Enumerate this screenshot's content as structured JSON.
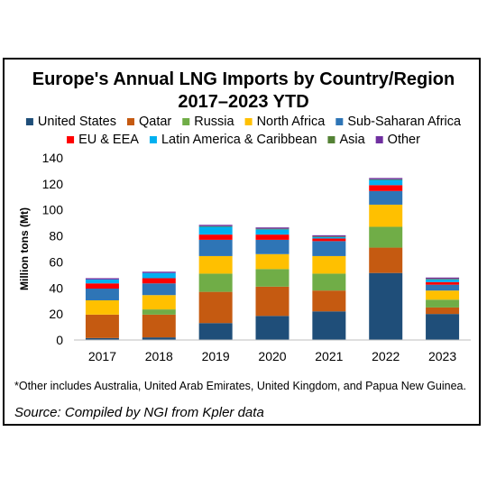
{
  "chart_data": {
    "type": "bar",
    "stacked": true,
    "title_lines": [
      "Europe's Annual LNG Imports by Country/Region",
      "2017–2023 YTD"
    ],
    "ylabel": "Million tons (Mt)",
    "xlabel": "",
    "ylim": [
      0,
      140
    ],
    "yticks": [
      0,
      20,
      40,
      60,
      80,
      100,
      120,
      140
    ],
    "grid": false,
    "legend_position": "top",
    "categories": [
      "2017",
      "2018",
      "2019",
      "2020",
      "2021",
      "2022",
      "2023"
    ],
    "series": [
      {
        "name": "United States",
        "color": "#1f4e79",
        "values": [
          1.5,
          2,
          13,
          18.5,
          22,
          51.5,
          20
        ]
      },
      {
        "name": "Qatar",
        "color": "#c55a11",
        "values": [
          18,
          17.5,
          24,
          22.5,
          16,
          19.5,
          5
        ]
      },
      {
        "name": "Russia",
        "color": "#70ad47",
        "values": [
          0,
          4,
          14,
          13.5,
          13,
          16,
          6
        ]
      },
      {
        "name": "North Africa",
        "color": "#ffc000",
        "values": [
          11,
          11,
          13.5,
          11.5,
          13.5,
          17,
          7
        ]
      },
      {
        "name": "Sub-Saharan Africa",
        "color": "#2e75b6",
        "values": [
          9,
          9,
          12.5,
          11,
          11.5,
          10.5,
          4.5
        ]
      },
      {
        "name": "EU & EEA",
        "color": "#ff0000",
        "values": [
          4,
          4,
          4,
          4,
          2,
          4.5,
          2
        ]
      },
      {
        "name": "Latin America & Caribbean",
        "color": "#00b0f0",
        "values": [
          3,
          4,
          6,
          4,
          1,
          4,
          2
        ]
      },
      {
        "name": "Asia",
        "color": "#548235",
        "values": [
          0,
          0,
          0.5,
          0.5,
          0.5,
          0.5,
          0.5
        ]
      },
      {
        "name": "Other",
        "color": "#7030a0",
        "values": [
          1,
          1,
          1,
          1,
          1,
          1,
          1
        ]
      }
    ]
  },
  "footnote": "*Other includes Australia, United Arab Emirates, United Kingdom, and Papua New Guinea.",
  "source": "Source: Compiled by NGI from Kpler data"
}
